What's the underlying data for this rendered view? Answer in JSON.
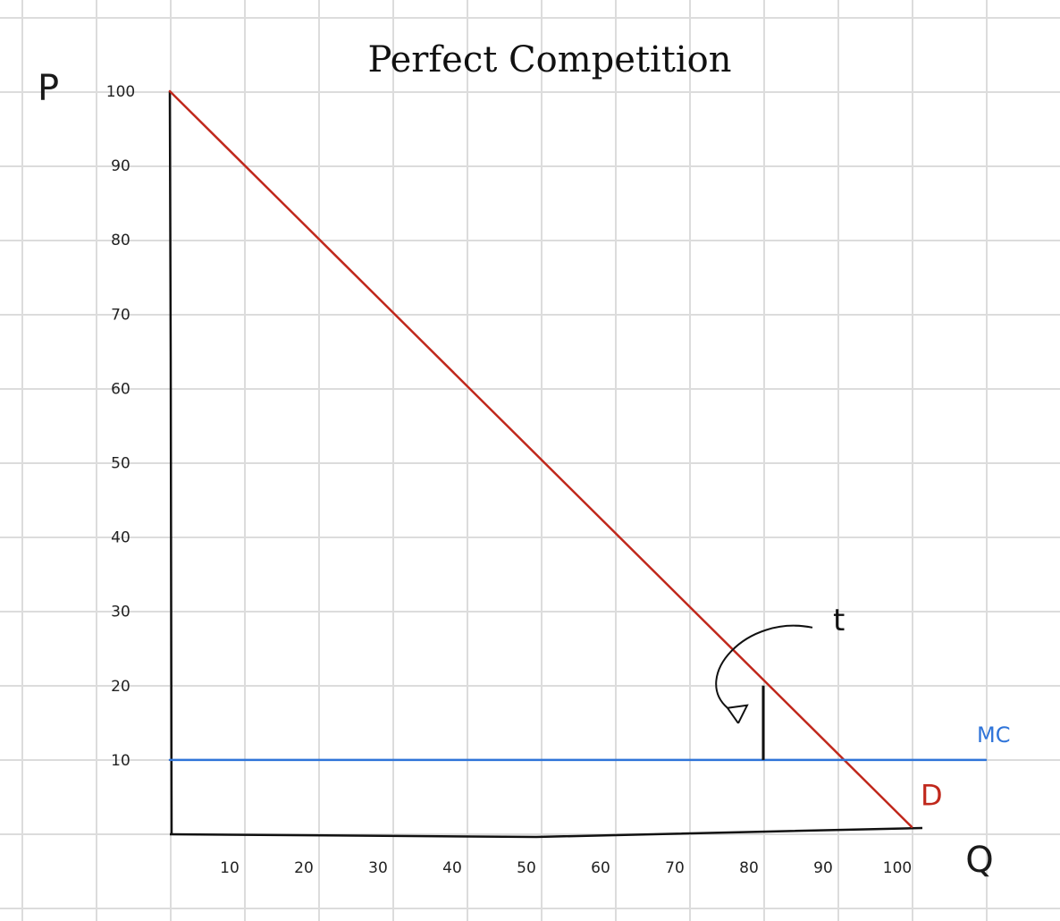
{
  "chart_data": {
    "type": "line",
    "title": "Perfect Competition",
    "xlabel": "Q",
    "ylabel": "P",
    "xlim": [
      0,
      100
    ],
    "ylim": [
      0,
      100
    ],
    "x_ticks": [
      "10",
      "20",
      "30",
      "40",
      "50",
      "60",
      "70",
      "80",
      "90",
      "100"
    ],
    "y_ticks": [
      "10",
      "20",
      "30",
      "40",
      "50",
      "60",
      "70",
      "80",
      "90",
      "100"
    ],
    "grid": true,
    "series": [
      {
        "name": "D",
        "color": "#c0281c",
        "points": [
          [
            0,
            100
          ],
          [
            100,
            1
          ]
        ]
      },
      {
        "name": "MC",
        "color": "#2f74d9",
        "points": [
          [
            0,
            10
          ],
          [
            50,
            10
          ],
          [
            110,
            10
          ]
        ]
      }
    ],
    "annotations": [
      {
        "text": "t",
        "type": "tax-wedge",
        "x": 80,
        "y_from": 10,
        "y_to": 20
      }
    ]
  },
  "colors": {
    "grid": "#dcdcdc",
    "axis": "#111111",
    "demand": "#c0281c",
    "mc": "#2f74d9"
  }
}
